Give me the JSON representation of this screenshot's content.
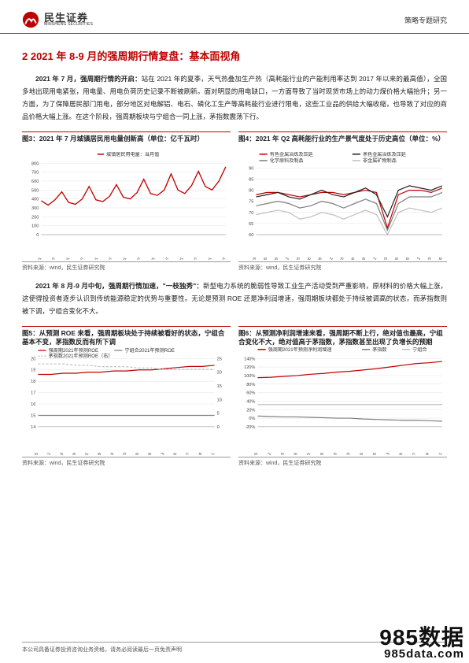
{
  "header": {
    "logo_cn": "民生证券",
    "logo_en": "MINSHENG SECURITIES",
    "right": "策略专题研究"
  },
  "section": {
    "prefix": "2 2021 年 8-9 月的强周期行情复盘：",
    "suffix": "基本面视角"
  },
  "para1": {
    "lead": "2021 年 7 月，强周期行情的开启：",
    "rest": "站在 2021 年的夏季，天气热叠加生产热（高耗能行业的产能利用率达到 2017 年以来的最高值），全国多地出现用电紧张，用电量、用电负荷历史记录不断被刷新。面对明显的用电缺口，一方面导致了当时现货市场上的动力煤价格大幅抬升；另一方面，为了保障居民部门用电，部分地区对电解铝、电石、磷化工生产等高耗能行业进行限电，这些工业品的供给大幅收缩，也导致了对应的商品价格大幅上涨。在这个阶段，强周期板块与宁组合一同上涨，茅指数震荡下行。"
  },
  "para2": {
    "lead": "2021 年 8 月-9 月中旬，强周期行情加速，\"一枝独秀\"：",
    "rest": "新型电力系统的脆弱性导致工业生产活动受到严重影响，原材料的价格大幅上涨，这使得投资者逐步认识到传统能源稳定的优势与重要性。无论是预测 ROE 还是净利润增速，强周期板块都处于持续被调高的状态，而茅指数则被下调，宁组合变化不大。"
  },
  "chart3": {
    "title": "图3：2021 年 7 月城镇居民用电量创新高（单位：亿千瓦时）",
    "legend": "城镇居民用电量：当月值",
    "source": "资料来源：wind，民生证券研究院",
    "yticks": [
      0,
      100,
      200,
      300,
      400,
      500,
      600,
      700,
      800
    ],
    "xticks": [
      "2015-01",
      "2015-07",
      "2016-01",
      "2016-07",
      "2017-01",
      "2017-07",
      "2018-01",
      "2018-07",
      "2019-01",
      "2019-07",
      "2020-01",
      "2020-07",
      "2021-01",
      "2021-07"
    ],
    "values": [
      380,
      330,
      390,
      480,
      360,
      340,
      400,
      540,
      390,
      370,
      430,
      560,
      420,
      400,
      470,
      620,
      460,
      440,
      500,
      680,
      500,
      460,
      550,
      710,
      540,
      500,
      600,
      760
    ],
    "line_color": "#c00000",
    "grid_color": "#dddddd",
    "ylim": [
      0,
      800
    ]
  },
  "chart4": {
    "title": "图4：2021 年 Q2 高耗能行业的生产景气度处于历史高位（单位：%）",
    "source": "资料来源：wind，民生证券研究院",
    "legends": [
      "有色金属冶炼及压延",
      "黑色金属冶炼及压延",
      "化学原料及制品",
      "非金属矿物制品"
    ],
    "colors": [
      "#c00000",
      "#222222",
      "#7f7f7f",
      "#bfbfbf"
    ],
    "yticks": [
      60,
      65,
      70,
      75,
      80,
      85,
      90
    ],
    "xticks": [
      "2017-03",
      "2017-06",
      "2017-09",
      "2017-12",
      "2018-03",
      "2018-06",
      "2018-09",
      "2018-12",
      "2019-03",
      "2019-06",
      "2019-09",
      "2019-12",
      "2020-03",
      "2020-06",
      "2020-09",
      "2020-12",
      "2021-03",
      "2021-06"
    ],
    "series": [
      [
        78,
        79,
        79,
        78,
        77,
        78,
        79,
        79,
        78,
        79,
        80,
        79,
        63,
        78,
        80,
        80,
        79,
        81
      ],
      [
        77,
        78,
        79,
        77,
        76,
        78,
        80,
        78,
        77,
        79,
        81,
        78,
        68,
        80,
        82,
        81,
        80,
        82
      ],
      [
        73,
        74,
        75,
        74,
        72,
        73,
        75,
        74,
        72,
        74,
        76,
        74,
        62,
        74,
        77,
        77,
        77,
        79
      ],
      [
        69,
        70,
        71,
        70,
        67,
        68,
        70,
        69,
        67,
        69,
        71,
        69,
        60,
        70,
        72,
        71,
        70,
        72
      ]
    ],
    "ylim": [
      60,
      90
    ]
  },
  "chart5": {
    "title": "图5：从预测 ROE 来看，强周期板块处于持续被看好的状态，宁组合基本不变，茅指数反而有所下调",
    "source": "资料来源：wind，民生证券研究院",
    "legends": [
      "强周期2021年预测ROE",
      "宁组合2021年预测ROE",
      "茅指数2021年预测ROE（右）"
    ],
    "colors": [
      "#c00000",
      "#7f7f7f",
      "#bfbfbf"
    ],
    "yleft": [
      14,
      15,
      16,
      17,
      18,
      19,
      20
    ],
    "yright": [
      0,
      5,
      10,
      15,
      20,
      25
    ],
    "xticks": [
      "2021-07-05",
      "2021-07-12",
      "2021-07-19",
      "2021-07-26",
      "2021-08-02",
      "2021-08-09",
      "2021-08-16",
      "2021-08-23",
      "2021-08-30",
      "2021-09-06",
      "2021-09-13",
      "2021-09-20",
      "2021-09-27",
      "2021-10-04",
      "2021-10-11"
    ],
    "s_red": [
      18.6,
      18.6,
      18.7,
      18.7,
      18.8,
      18.8,
      18.9,
      18.9,
      19.0,
      19.0,
      19.1,
      19.2,
      19.3,
      19.3,
      19.4
    ],
    "s_grey": [
      15.0,
      15.0,
      15.0,
      15.0,
      15.0,
      15.0,
      15.0,
      15.0,
      15.0,
      15.0,
      15.0,
      15.0,
      15.0,
      15.0,
      15.0
    ],
    "s_dash": [
      23,
      23,
      23,
      22.5,
      22.5,
      22,
      22,
      22,
      21.5,
      21.5,
      21,
      21,
      21,
      21,
      21
    ],
    "ylim_l": [
      14,
      20
    ],
    "ylim_r": [
      0,
      25
    ]
  },
  "chart6": {
    "title": "图6：从预测净利润增速来看，强周期不断上行，绝对值也最高，宁组合变化不大，绝对值高于茅指数，茅指数甚至出现了负增长的预期",
    "source": "资料来源：wind，民生证券研究院",
    "legends": [
      "强周期2021年预测净利润增速",
      "茅指数",
      "宁组合"
    ],
    "colors": [
      "#c00000",
      "#7f7f7f",
      "#bfbfbf"
    ],
    "yticks": [
      -20,
      0,
      20,
      40,
      60,
      80,
      100,
      120,
      140
    ],
    "xticks": [
      "2021-07-05",
      "2021-07-12",
      "2021-07-19",
      "2021-07-26",
      "2021-08-02",
      "2021-08-09",
      "2021-08-16",
      "2021-08-23",
      "2021-08-30",
      "2021-09-06",
      "2021-09-13",
      "2021-09-20",
      "2021-09-27",
      "2021-10-04",
      "2021-10-11"
    ],
    "s_red": [
      95,
      96,
      98,
      100,
      103,
      105,
      108,
      110,
      113,
      116,
      120,
      124,
      128,
      130,
      133
    ],
    "s_mao": [
      5,
      4,
      3,
      3,
      2,
      1,
      0,
      0,
      -2,
      -3,
      -4,
      -5,
      -5,
      -6,
      -7
    ],
    "s_ning": [
      32,
      32,
      32,
      32,
      32,
      32,
      32,
      32,
      32,
      32,
      32,
      32,
      32,
      32,
      32
    ],
    "ylim": [
      -20,
      140
    ]
  },
  "footer": "本公司具备证券投资咨询业务资格，请务必阅读最后一页免责声明",
  "watermark": {
    "l1": "985数据",
    "l2": "985data.com"
  }
}
